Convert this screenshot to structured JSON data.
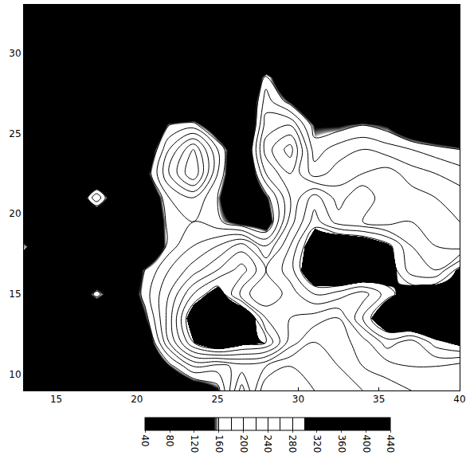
{
  "chart_data": {
    "type": "contour",
    "x": [
      13,
      14.5,
      16,
      17.5,
      19,
      20.5,
      22,
      23.5,
      25,
      26.5,
      28,
      29.5,
      31,
      32.5,
      34,
      35.5,
      37,
      38.5,
      40
    ],
    "y": [
      9,
      10.5,
      12,
      13.5,
      15,
      16.5,
      18,
      19.5,
      21,
      22.5,
      24,
      25.5,
      27,
      28.5,
      30,
      31.5,
      33
    ],
    "z": [
      [
        150,
        80,
        70,
        70,
        70,
        80,
        90,
        120,
        150,
        250,
        160,
        170,
        180,
        190,
        200,
        210,
        220,
        230,
        220
      ],
      [
        110,
        70,
        70,
        70,
        80,
        90,
        150,
        200,
        190,
        210,
        200,
        180,
        190,
        200,
        220,
        230,
        240,
        240,
        230
      ],
      [
        80,
        70,
        70,
        70,
        80,
        120,
        220,
        300,
        340,
        310,
        300,
        230,
        200,
        210,
        230,
        270,
        250,
        290,
        310
      ],
      [
        70,
        70,
        70,
        80,
        90,
        150,
        230,
        330,
        360,
        350,
        260,
        240,
        230,
        220,
        280,
        340,
        360,
        370,
        360
      ],
      [
        80,
        80,
        100,
        170,
        110,
        170,
        220,
        280,
        320,
        250,
        220,
        250,
        280,
        270,
        250,
        290,
        320,
        330,
        320
      ],
      [
        90,
        80,
        80,
        90,
        100,
        160,
        200,
        230,
        260,
        290,
        240,
        270,
        340,
        360,
        350,
        320,
        270,
        260,
        310
      ],
      [
        165,
        80,
        70,
        80,
        80,
        90,
        170,
        200,
        220,
        250,
        200,
        260,
        330,
        350,
        340,
        310,
        260,
        240,
        230
      ],
      [
        70,
        70,
        70,
        80,
        70,
        100,
        170,
        180,
        165,
        140,
        130,
        230,
        290,
        250,
        240,
        230,
        240,
        230,
        220
      ],
      [
        70,
        70,
        90,
        200,
        90,
        110,
        180,
        200,
        160,
        90,
        150,
        220,
        270,
        230,
        260,
        220,
        230,
        220,
        210
      ],
      [
        60,
        60,
        70,
        80,
        90,
        140,
        220,
        280,
        180,
        100,
        200,
        240,
        190,
        210,
        220,
        230,
        210,
        200,
        190
      ],
      [
        60,
        60,
        60,
        70,
        80,
        120,
        200,
        260,
        180,
        110,
        230,
        270,
        170,
        190,
        200,
        190,
        180,
        170,
        160
      ],
      [
        60,
        60,
        60,
        60,
        70,
        90,
        160,
        170,
        120,
        90,
        210,
        220,
        150,
        150,
        160,
        150,
        120,
        100,
        90
      ],
      [
        60,
        60,
        60,
        60,
        60,
        70,
        80,
        80,
        80,
        100,
        190,
        150,
        90,
        80,
        80,
        70,
        70,
        70,
        70
      ],
      [
        60,
        60,
        60,
        60,
        60,
        60,
        60,
        60,
        60,
        80,
        170,
        100,
        70,
        60,
        60,
        60,
        60,
        60,
        60
      ],
      [
        60,
        60,
        60,
        60,
        60,
        60,
        60,
        60,
        60,
        60,
        60,
        60,
        60,
        60,
        60,
        60,
        60,
        60,
        60
      ],
      [
        60,
        60,
        60,
        60,
        60,
        60,
        60,
        60,
        60,
        60,
        60,
        60,
        60,
        60,
        60,
        60,
        60,
        60,
        60
      ],
      [
        60,
        60,
        60,
        60,
        60,
        60,
        60,
        60,
        60,
        60,
        60,
        60,
        60,
        60,
        60,
        60,
        60,
        60,
        60
      ]
    ],
    "xlim": [
      13,
      40
    ],
    "ylim": [
      9,
      33
    ],
    "xticks": [
      15,
      20,
      25,
      30,
      35,
      40
    ],
    "yticks": [
      10,
      15,
      20,
      25,
      30
    ],
    "zlim": [
      40,
      440
    ],
    "zticks": [
      40,
      80,
      120,
      160,
      200,
      240,
      280,
      320,
      360,
      400,
      440
    ],
    "contour_levels": {
      "start": 160,
      "end": 300,
      "size": 20
    },
    "colors": [
      "#000000",
      "#ffffff",
      "#000000"
    ]
  }
}
